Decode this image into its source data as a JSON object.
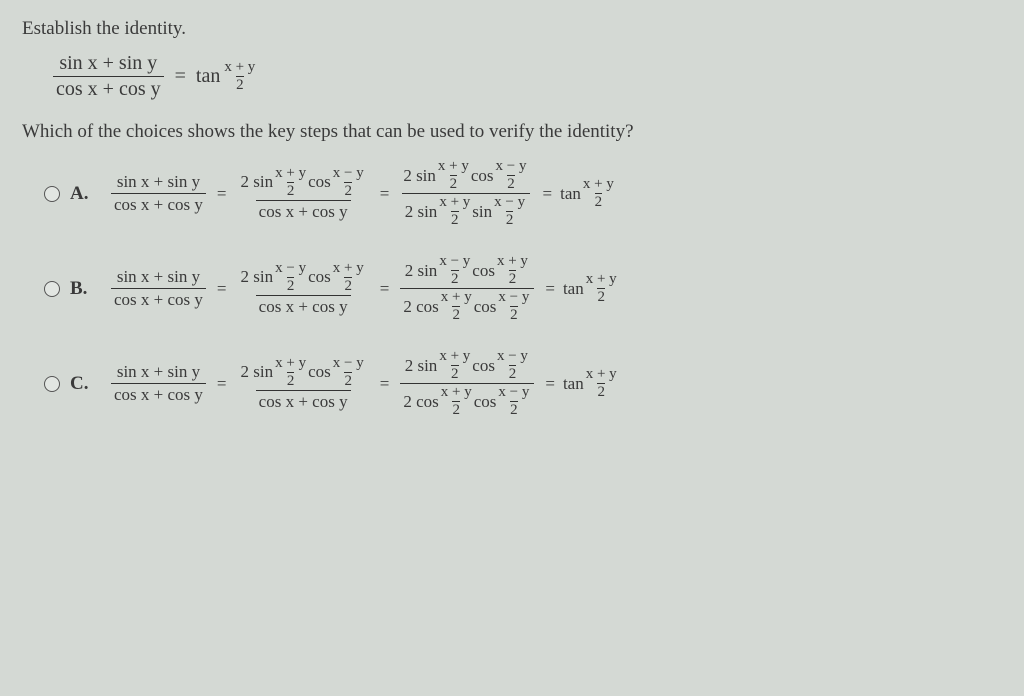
{
  "prompt": "Establish the identity.",
  "question": "Which of the choices shows the key steps that can be used to verify the identity?",
  "identity": {
    "lhs_num": "sin x + sin y",
    "lhs_den": "cos x + cos y",
    "rhs_fn": "tan",
    "rhs_frac_num": "x + y",
    "rhs_frac_den": "2",
    "eq": "="
  },
  "common": {
    "lhs_num": "sin x + sin y",
    "lhs_den": "cos x + cos y",
    "two": "2",
    "eq": "=",
    "tan": "tan",
    "sin": "sin",
    "cos": "cos",
    "xpy": "x + y",
    "xmy": "x − y"
  },
  "choices": [
    {
      "label": "A.",
      "step1_num_parts": [
        "2 sin",
        "(x+y)/2",
        "cos",
        "(x-y)/2"
      ],
      "step1_den": "cos x + cos y",
      "step2_num_parts": [
        "2 sin",
        "(x+y)/2",
        "cos",
        "(x-y)/2"
      ],
      "step2_den_parts": [
        "2 sin",
        "(x+y)/2",
        "sin",
        "(x-y)/2"
      ]
    },
    {
      "label": "B.",
      "step1_num_parts": [
        "2 sin",
        "(x-y)/2",
        "cos",
        "(x+y)/2"
      ],
      "step1_den": "cos x + cos y",
      "step2_num_parts": [
        "2 sin",
        "(x-y)/2",
        "cos",
        "(x+y)/2"
      ],
      "step2_den_parts": [
        "2 cos",
        "(x+y)/2",
        "cos",
        "(x-y)/2"
      ]
    },
    {
      "label": "C.",
      "step1_num_parts": [
        "2 sin",
        "(x+y)/2",
        "cos",
        "(x-y)/2"
      ],
      "step1_den": "cos x + cos y",
      "step2_num_parts": [
        "2 sin",
        "(x+y)/2",
        "cos",
        "(x-y)/2"
      ],
      "step2_den_parts": [
        "2 cos",
        "(x+y)/2",
        "cos",
        "(x-y)/2"
      ]
    }
  ],
  "styling": {
    "background_color": "#d4d9d4",
    "text_color": "#3a3a3a",
    "font_family": "Georgia, serif",
    "radio_border": "#555555",
    "fraction_bar_color": "#333333",
    "base_fontsize": 19,
    "math_fontsize": 17,
    "small_frac_fontsize": 15
  }
}
